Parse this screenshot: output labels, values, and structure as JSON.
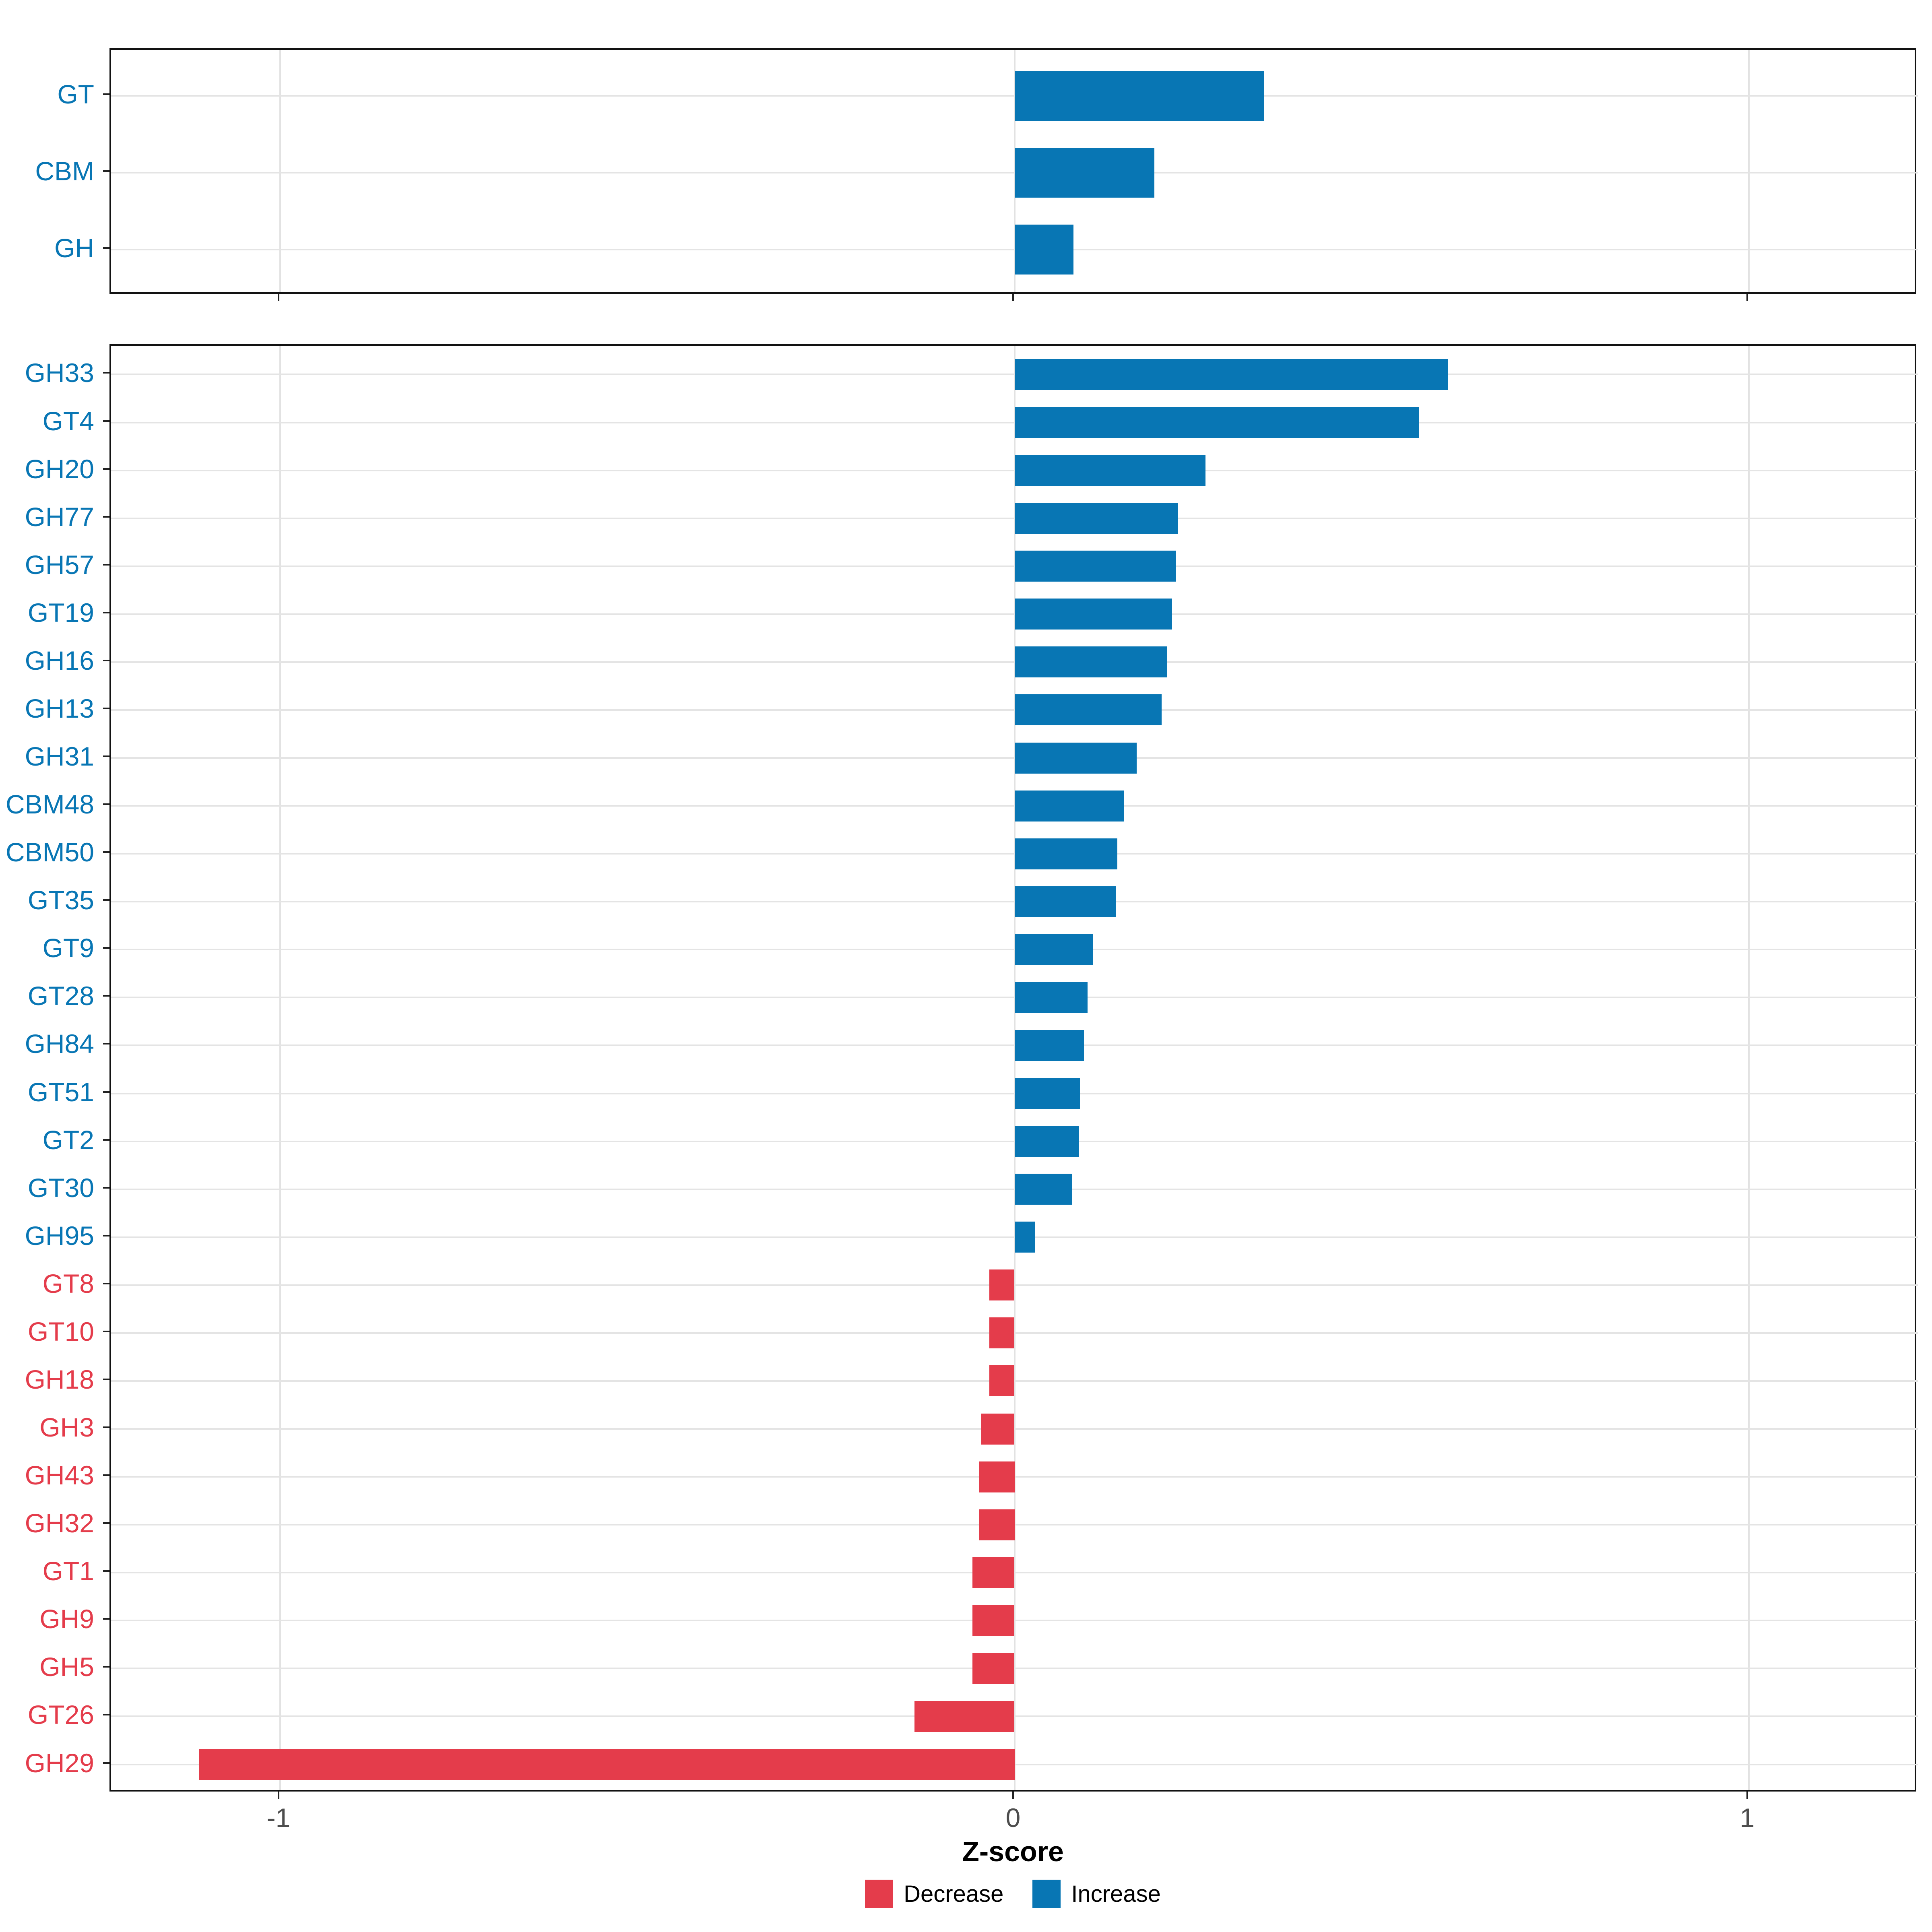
{
  "chart_data": {
    "type": "bar",
    "orientation": "horizontal",
    "title": "",
    "xlabel": "Z-score",
    "xlim": [
      -1.23,
      1.23
    ],
    "x_ticks": [
      -1,
      0,
      1
    ],
    "grid": "major-only",
    "legend_position": "bottom",
    "colors": {
      "decrease": "#e43c4b",
      "increase": "#0876b4",
      "gridline": "#e2e2e2",
      "tick_label": "#4d4d4d",
      "panel_border": "#121212"
    },
    "legend": [
      {
        "label": "Decrease",
        "key": "decrease"
      },
      {
        "label": "Increase",
        "key": "increase"
      }
    ],
    "facets": [
      {
        "name": "enzyme-classes",
        "rows": [
          {
            "label": "GT",
            "value": 0.34,
            "direction": "increase"
          },
          {
            "label": "CBM",
            "value": 0.19,
            "direction": "increase"
          },
          {
            "label": "GH",
            "value": 0.08,
            "direction": "increase"
          }
        ]
      },
      {
        "name": "enzyme-families",
        "rows": [
          {
            "label": "GH33",
            "value": 0.59,
            "direction": "increase"
          },
          {
            "label": "GT4",
            "value": 0.55,
            "direction": "increase"
          },
          {
            "label": "GH20",
            "value": 0.26,
            "direction": "increase"
          },
          {
            "label": "GH77",
            "value": 0.222,
            "direction": "increase"
          },
          {
            "label": "GH57",
            "value": 0.22,
            "direction": "increase"
          },
          {
            "label": "GT19",
            "value": 0.214,
            "direction": "increase"
          },
          {
            "label": "GH16",
            "value": 0.207,
            "direction": "increase"
          },
          {
            "label": "GH13",
            "value": 0.2,
            "direction": "increase"
          },
          {
            "label": "GH31",
            "value": 0.166,
            "direction": "increase"
          },
          {
            "label": "CBM48",
            "value": 0.149,
            "direction": "increase"
          },
          {
            "label": "CBM50",
            "value": 0.14,
            "direction": "increase"
          },
          {
            "label": "GT35",
            "value": 0.138,
            "direction": "increase"
          },
          {
            "label": "GT9",
            "value": 0.107,
            "direction": "increase"
          },
          {
            "label": "GT28",
            "value": 0.099,
            "direction": "increase"
          },
          {
            "label": "GH84",
            "value": 0.094,
            "direction": "increase"
          },
          {
            "label": "GT51",
            "value": 0.089,
            "direction": "increase"
          },
          {
            "label": "GT2",
            "value": 0.087,
            "direction": "increase"
          },
          {
            "label": "GT30",
            "value": 0.078,
            "direction": "increase"
          },
          {
            "label": "GH95",
            "value": 0.028,
            "direction": "increase"
          },
          {
            "label": "GT8",
            "value": -0.034,
            "direction": "decrease"
          },
          {
            "label": "GT10",
            "value": -0.034,
            "direction": "decrease"
          },
          {
            "label": "GH18",
            "value": -0.034,
            "direction": "decrease"
          },
          {
            "label": "GH3",
            "value": -0.045,
            "direction": "decrease"
          },
          {
            "label": "GH43",
            "value": -0.048,
            "direction": "decrease"
          },
          {
            "label": "GH32",
            "value": -0.048,
            "direction": "decrease"
          },
          {
            "label": "GT1",
            "value": -0.057,
            "direction": "decrease"
          },
          {
            "label": "GH9",
            "value": -0.057,
            "direction": "decrease"
          },
          {
            "label": "GH5",
            "value": -0.057,
            "direction": "decrease"
          },
          {
            "label": "GT26",
            "value": -0.136,
            "direction": "decrease"
          },
          {
            "label": "GH29",
            "value": -1.11,
            "direction": "decrease"
          }
        ]
      }
    ]
  }
}
